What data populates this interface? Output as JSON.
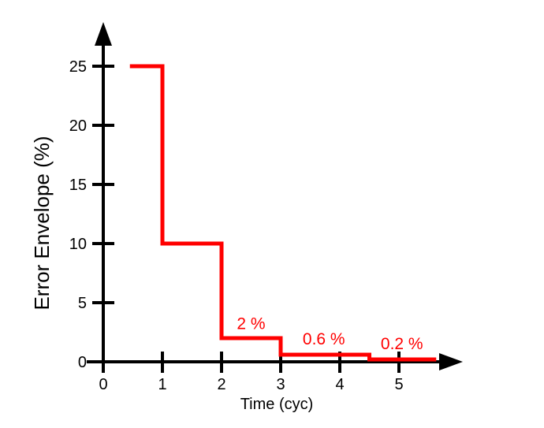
{
  "chart_data": {
    "type": "line",
    "line_style": "step",
    "title": "",
    "xlabel": "Time (cyc)",
    "ylabel": "Error Envelope (%)",
    "x_ticks": [
      0,
      1,
      2,
      3,
      4,
      5
    ],
    "y_ticks": [
      0,
      5,
      10,
      15,
      20,
      25
    ],
    "xlim": [
      0,
      5.9
    ],
    "ylim": [
      0,
      28.5
    ],
    "grid": false,
    "legend": "none",
    "axis_color": "#000000",
    "series": [
      {
        "name": "error-envelope",
        "color": "#ff0000",
        "points": [
          [
            0.45,
            25
          ],
          [
            1,
            25
          ],
          [
            1,
            10
          ],
          [
            2,
            10
          ],
          [
            2,
            2
          ],
          [
            3,
            2
          ],
          [
            3,
            0.6
          ],
          [
            4.5,
            0.6
          ],
          [
            4.5,
            0.2
          ],
          [
            5.63,
            0.2
          ]
        ]
      }
    ],
    "annotations": [
      {
        "text": "2 %",
        "x": 2.5,
        "y": 3.3,
        "color": "#ff0000"
      },
      {
        "text": "0.6 %",
        "x": 3.73,
        "y": 2.0,
        "color": "#ff0000"
      },
      {
        "text": "0.2 %",
        "x": 5.05,
        "y": 1.6,
        "color": "#ff0000"
      }
    ]
  }
}
